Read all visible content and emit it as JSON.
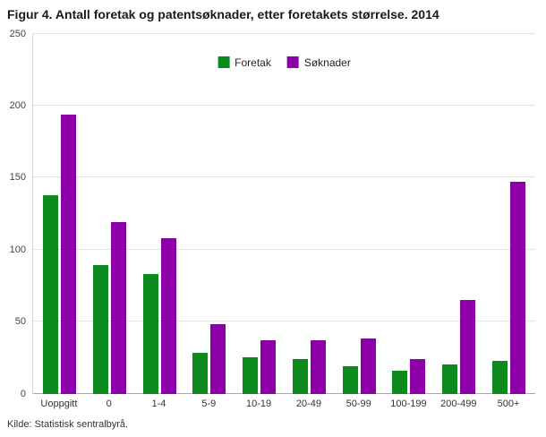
{
  "title": "Figur 4. Antall foretak og patentsøknader, etter foretakets størrelse. 2014",
  "source": "Kilde: Statistisk sentralbyrå.",
  "colors": {
    "foretak": "#0d8a1e",
    "soknader": "#8c00a8",
    "gridline": "#e1e1e1",
    "baseline": "#a8a8a8"
  },
  "chart_data": {
    "type": "bar",
    "title": "Figur 4. Antall foretak og patentsøknader, etter foretakets størrelse. 2014",
    "categories": [
      "Uoppgitt",
      "0",
      "1-4",
      "5-9",
      "10-19",
      "20-49",
      "50-99",
      "100-199",
      "200-499",
      "500+"
    ],
    "series": [
      {
        "name": "Foretak",
        "color": "#0d8a1e",
        "values": [
          138,
          89,
          83,
          28,
          25,
          24,
          19,
          16,
          20,
          23
        ]
      },
      {
        "name": "Søknader",
        "color": "#8c00a8",
        "values": [
          194,
          119,
          108,
          48,
          37,
          37,
          38,
          24,
          65,
          147
        ]
      }
    ],
    "xlabel": "",
    "ylabel": "",
    "ylim": [
      0,
      250
    ],
    "yticks": [
      0,
      50,
      100,
      150,
      200,
      250
    ],
    "grid": true,
    "legend_position": "top-center"
  }
}
